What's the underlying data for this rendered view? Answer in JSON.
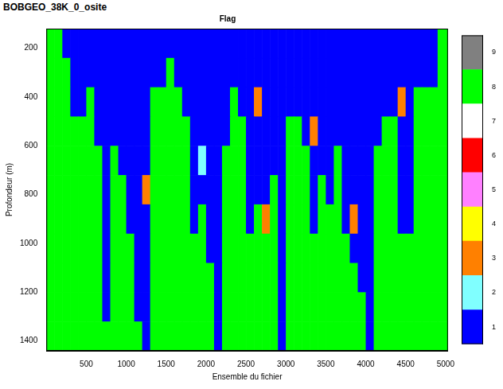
{
  "chart_data": {
    "type": "heatmap",
    "title": "BOBGEO_38K_0_osite",
    "subtitle": "Flag",
    "x_label": "Ensemble du fichier",
    "y_label": "Profondeur (m)",
    "xlim": [
      0,
      5030
    ],
    "xticks": [
      500,
      1000,
      1500,
      2000,
      2500,
      3000,
      3500,
      4000,
      4500,
      5000
    ],
    "ylim": [
      1440,
      120
    ],
    "yticks": [
      200,
      400,
      600,
      800,
      1000,
      1200,
      1400
    ],
    "grid": false,
    "x_edges": [
      0,
      100,
      200,
      300,
      400,
      500,
      600,
      700,
      800,
      900,
      1000,
      1100,
      1200,
      1300,
      1400,
      1500,
      1600,
      1700,
      1800,
      1900,
      2000,
      2100,
      2200,
      2300,
      2400,
      2500,
      2600,
      2700,
      2800,
      2900,
      3000,
      3100,
      3200,
      3300,
      3400,
      3500,
      3600,
      3700,
      3800,
      3900,
      4000,
      4100,
      4200,
      4300,
      4400,
      4500,
      4600,
      4700,
      4800,
      4900,
      5030
    ],
    "y_edges": [
      120,
      240,
      360,
      480,
      600,
      720,
      840,
      960,
      1080,
      1200,
      1320,
      1440
    ],
    "cells": [
      [
        8,
        8,
        1,
        1,
        1,
        1,
        1,
        1,
        1,
        1,
        1,
        1,
        1,
        1,
        1,
        1,
        1,
        1,
        1,
        1,
        1,
        1,
        1,
        1,
        1,
        1,
        1,
        1,
        1,
        1,
        1,
        1,
        1,
        1,
        1,
        1,
        1,
        1,
        1,
        1,
        1,
        1,
        1,
        1,
        1,
        1,
        1,
        1,
        1,
        8
      ],
      [
        8,
        8,
        8,
        1,
        1,
        1,
        1,
        1,
        1,
        1,
        1,
        1,
        1,
        1,
        1,
        8,
        1,
        1,
        1,
        1,
        1,
        1,
        1,
        1,
        1,
        1,
        1,
        1,
        1,
        1,
        1,
        1,
        1,
        1,
        1,
        1,
        1,
        1,
        1,
        1,
        1,
        1,
        1,
        1,
        1,
        1,
        1,
        1,
        1,
        8
      ],
      [
        8,
        8,
        8,
        1,
        1,
        8,
        1,
        1,
        1,
        1,
        1,
        1,
        1,
        8,
        8,
        8,
        8,
        1,
        1,
        1,
        1,
        1,
        1,
        8,
        1,
        1,
        3,
        1,
        1,
        1,
        1,
        1,
        1,
        1,
        1,
        1,
        1,
        1,
        1,
        1,
        1,
        1,
        1,
        1,
        3,
        1,
        8,
        8,
        8,
        8
      ],
      [
        8,
        8,
        8,
        8,
        8,
        8,
        1,
        1,
        1,
        1,
        1,
        1,
        1,
        8,
        8,
        8,
        8,
        8,
        1,
        1,
        1,
        1,
        1,
        8,
        8,
        1,
        1,
        1,
        1,
        1,
        8,
        8,
        1,
        3,
        1,
        1,
        1,
        1,
        1,
        1,
        1,
        1,
        8,
        8,
        1,
        1,
        8,
        8,
        8,
        8
      ],
      [
        8,
        8,
        8,
        8,
        8,
        8,
        8,
        1,
        8,
        1,
        1,
        1,
        1,
        8,
        8,
        8,
        8,
        8,
        1,
        2,
        1,
        1,
        8,
        8,
        8,
        1,
        1,
        1,
        1,
        1,
        8,
        8,
        8,
        1,
        1,
        1,
        8,
        1,
        1,
        1,
        1,
        8,
        8,
        8,
        1,
        1,
        8,
        8,
        8,
        8
      ],
      [
        8,
        8,
        8,
        8,
        8,
        8,
        8,
        1,
        8,
        8,
        1,
        1,
        3,
        8,
        8,
        8,
        8,
        8,
        1,
        1,
        1,
        1,
        8,
        8,
        8,
        1,
        1,
        1,
        8,
        1,
        8,
        8,
        8,
        1,
        8,
        1,
        8,
        1,
        1,
        1,
        1,
        8,
        8,
        8,
        1,
        1,
        8,
        8,
        8,
        8
      ],
      [
        8,
        8,
        8,
        8,
        8,
        8,
        8,
        1,
        8,
        8,
        1,
        1,
        1,
        8,
        8,
        8,
        8,
        8,
        1,
        8,
        1,
        1,
        8,
        8,
        8,
        1,
        8,
        3,
        8,
        1,
        8,
        8,
        8,
        1,
        8,
        8,
        8,
        1,
        3,
        1,
        1,
        8,
        8,
        8,
        1,
        1,
        8,
        8,
        8,
        8
      ],
      [
        8,
        8,
        8,
        8,
        8,
        8,
        8,
        1,
        8,
        8,
        8,
        1,
        1,
        8,
        8,
        8,
        8,
        8,
        8,
        8,
        1,
        1,
        8,
        8,
        8,
        8,
        8,
        8,
        8,
        1,
        8,
        8,
        8,
        8,
        8,
        8,
        8,
        8,
        1,
        1,
        1,
        8,
        8,
        8,
        8,
        8,
        8,
        8,
        8,
        8
      ],
      [
        8,
        8,
        8,
        8,
        8,
        8,
        8,
        1,
        8,
        8,
        8,
        1,
        1,
        8,
        8,
        8,
        8,
        8,
        8,
        8,
        8,
        1,
        8,
        8,
        8,
        8,
        8,
        8,
        8,
        1,
        8,
        8,
        8,
        8,
        8,
        8,
        8,
        8,
        8,
        1,
        1,
        8,
        8,
        8,
        8,
        8,
        8,
        8,
        8,
        8
      ],
      [
        8,
        8,
        8,
        8,
        8,
        8,
        8,
        1,
        8,
        8,
        8,
        1,
        1,
        8,
        8,
        8,
        8,
        8,
        8,
        8,
        8,
        1,
        8,
        8,
        8,
        8,
        8,
        8,
        8,
        1,
        8,
        8,
        8,
        8,
        8,
        8,
        8,
        8,
        8,
        8,
        1,
        8,
        8,
        8,
        8,
        8,
        8,
        8,
        8,
        8
      ],
      [
        8,
        8,
        8,
        8,
        8,
        8,
        8,
        8,
        8,
        8,
        8,
        8,
        1,
        8,
        8,
        8,
        8,
        8,
        8,
        8,
        8,
        1,
        8,
        8,
        8,
        8,
        8,
        8,
        8,
        1,
        8,
        8,
        8,
        8,
        8,
        8,
        8,
        8,
        8,
        8,
        1,
        8,
        8,
        8,
        8,
        8,
        8,
        8,
        8,
        8
      ]
    ],
    "colorbar": {
      "range": [
        0.5,
        9.5
      ],
      "ticks": [
        1,
        2,
        3,
        4,
        5,
        6,
        7,
        8,
        9
      ],
      "colors": [
        "#0000ff",
        "#80ffff",
        "#ff8000",
        "#ffff00",
        "#ff80ff",
        "#ff0000",
        "#ffffff",
        "#00ff00",
        "#808080"
      ]
    }
  }
}
